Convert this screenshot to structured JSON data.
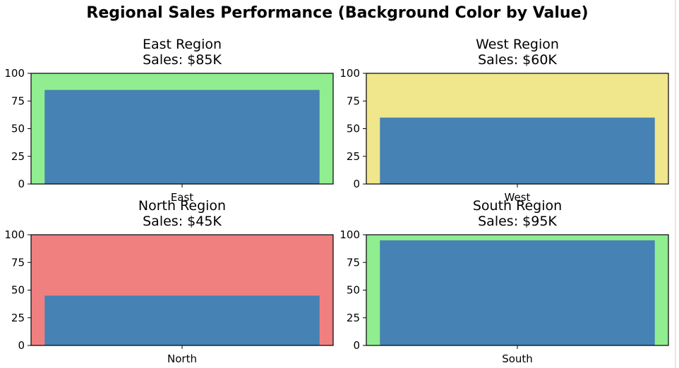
{
  "figure": {
    "title": "Regional Sales Performance (Background Color by Value)"
  },
  "colors": {
    "bar": "#4682b4",
    "high": "#90ee90",
    "mid": "#f0e68c",
    "low": "#f08080"
  },
  "chart_data": [
    {
      "type": "bar",
      "title": "East Region",
      "subtitle": "Sales: $85K",
      "categories": [
        "East"
      ],
      "values": [
        85
      ],
      "ylim": [
        0,
        100
      ],
      "yticks": [
        0,
        25,
        50,
        75,
        100
      ],
      "background": "high",
      "grid": false
    },
    {
      "type": "bar",
      "title": "West Region",
      "subtitle": "Sales: $60K",
      "categories": [
        "West"
      ],
      "values": [
        60
      ],
      "ylim": [
        0,
        100
      ],
      "yticks": [
        0,
        25,
        50,
        75,
        100
      ],
      "background": "mid",
      "grid": false
    },
    {
      "type": "bar",
      "title": "North Region",
      "subtitle": "Sales: $45K",
      "categories": [
        "North"
      ],
      "values": [
        45
      ],
      "ylim": [
        0,
        100
      ],
      "yticks": [
        0,
        25,
        50,
        75,
        100
      ],
      "background": "low",
      "grid": false
    },
    {
      "type": "bar",
      "title": "South Region",
      "subtitle": "Sales: $95K",
      "categories": [
        "South"
      ],
      "values": [
        95
      ],
      "ylim": [
        0,
        100
      ],
      "yticks": [
        0,
        25,
        50,
        75,
        100
      ],
      "background": "high",
      "grid": false
    }
  ]
}
